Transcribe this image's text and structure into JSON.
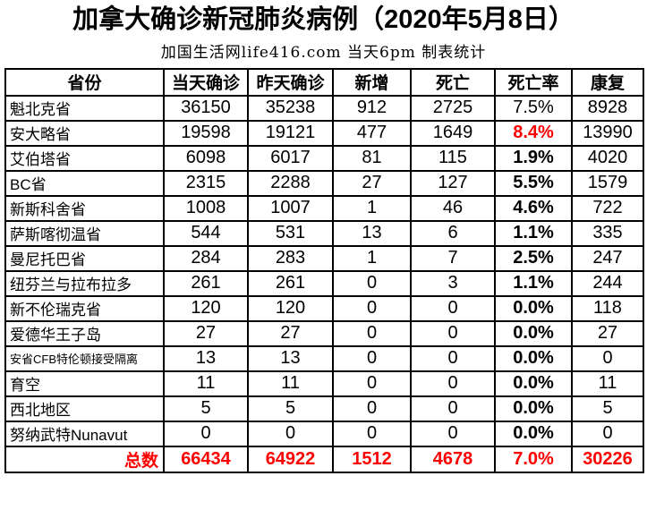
{
  "header": {
    "title": "加拿大确诊新冠肺炎病例（2020年5月8日）",
    "subtitle": "加国生活网life416.com 当天6pm 制表统计"
  },
  "colors": {
    "text": "#000000",
    "highlight_red": "#ff0000",
    "border": "#000000",
    "background": "#ffffff"
  },
  "chart_data": {
    "type": "table",
    "title": "加拿大确诊新冠肺炎病例（2020年5月8日）",
    "subtitle": "加国生活网life416.com 当天6pm 制表统计",
    "columns": [
      "省份",
      "当天确诊",
      "昨天确诊",
      "新增",
      "死亡",
      "死亡率",
      "康复"
    ],
    "rows": [
      {
        "province": "魁北克省",
        "today": "36150",
        "yesterday": "35238",
        "new": "912",
        "deaths": "2725",
        "death_rate": "7.5%",
        "recovered": "8928",
        "rate_style": "normal",
        "small_label": false
      },
      {
        "province": "安大略省",
        "today": "19598",
        "yesterday": "19121",
        "new": "477",
        "deaths": "1649",
        "death_rate": "8.4%",
        "recovered": "13990",
        "rate_style": "red",
        "small_label": false
      },
      {
        "province": "艾伯塔省",
        "today": "6098",
        "yesterday": "6017",
        "new": "81",
        "deaths": "115",
        "death_rate": "1.9%",
        "recovered": "4020",
        "rate_style": "bold",
        "small_label": false
      },
      {
        "province": "BC省",
        "today": "2315",
        "yesterday": "2288",
        "new": "27",
        "deaths": "127",
        "death_rate": "5.5%",
        "recovered": "1579",
        "rate_style": "bold",
        "small_label": false
      },
      {
        "province": "新斯科舍省",
        "today": "1008",
        "yesterday": "1007",
        "new": "1",
        "deaths": "46",
        "death_rate": "4.6%",
        "recovered": "722",
        "rate_style": "bold",
        "small_label": false
      },
      {
        "province": "萨斯喀彻温省",
        "today": "544",
        "yesterday": "531",
        "new": "13",
        "deaths": "6",
        "death_rate": "1.1%",
        "recovered": "335",
        "rate_style": "bold",
        "small_label": false
      },
      {
        "province": "曼尼托巴省",
        "today": "284",
        "yesterday": "283",
        "new": "1",
        "deaths": "7",
        "death_rate": "2.5%",
        "recovered": "247",
        "rate_style": "bold",
        "small_label": false
      },
      {
        "province": "纽芬兰与拉布拉多",
        "today": "261",
        "yesterday": "261",
        "new": "0",
        "deaths": "3",
        "death_rate": "1.1%",
        "recovered": "244",
        "rate_style": "bold",
        "small_label": false
      },
      {
        "province": "新不伦瑞克省",
        "today": "120",
        "yesterday": "120",
        "new": "0",
        "deaths": "0",
        "death_rate": "0.0%",
        "recovered": "118",
        "rate_style": "bold",
        "small_label": false
      },
      {
        "province": "爱德华王子岛",
        "today": "27",
        "yesterday": "27",
        "new": "0",
        "deaths": "0",
        "death_rate": "0.0%",
        "recovered": "27",
        "rate_style": "bold",
        "small_label": false
      },
      {
        "province": "安省CFB特伦顿接受隔离",
        "today": "13",
        "yesterday": "13",
        "new": "0",
        "deaths": "0",
        "death_rate": "0.0%",
        "recovered": "0",
        "rate_style": "bold",
        "small_label": true
      },
      {
        "province": "育空",
        "today": "11",
        "yesterday": "11",
        "new": "0",
        "deaths": "0",
        "death_rate": "0.0%",
        "recovered": "11",
        "rate_style": "bold",
        "small_label": false
      },
      {
        "province": "西北地区",
        "today": "5",
        "yesterday": "5",
        "new": "0",
        "deaths": "0",
        "death_rate": "0.0%",
        "recovered": "5",
        "rate_style": "bold",
        "small_label": false
      },
      {
        "province": "努纳武特Nunavut",
        "today": "0",
        "yesterday": "0",
        "new": "0",
        "deaths": "0",
        "death_rate": "0.0%",
        "recovered": "0",
        "rate_style": "bold",
        "small_label": false
      }
    ],
    "totals": {
      "label": "总数",
      "today": "66434",
      "yesterday": "64922",
      "new": "1512",
      "deaths": "4678",
      "death_rate": "7.0%",
      "recovered": "30226"
    },
    "layout": {
      "grid": "all-borders",
      "header_bold": true,
      "totals_color": "#ff0000"
    }
  }
}
